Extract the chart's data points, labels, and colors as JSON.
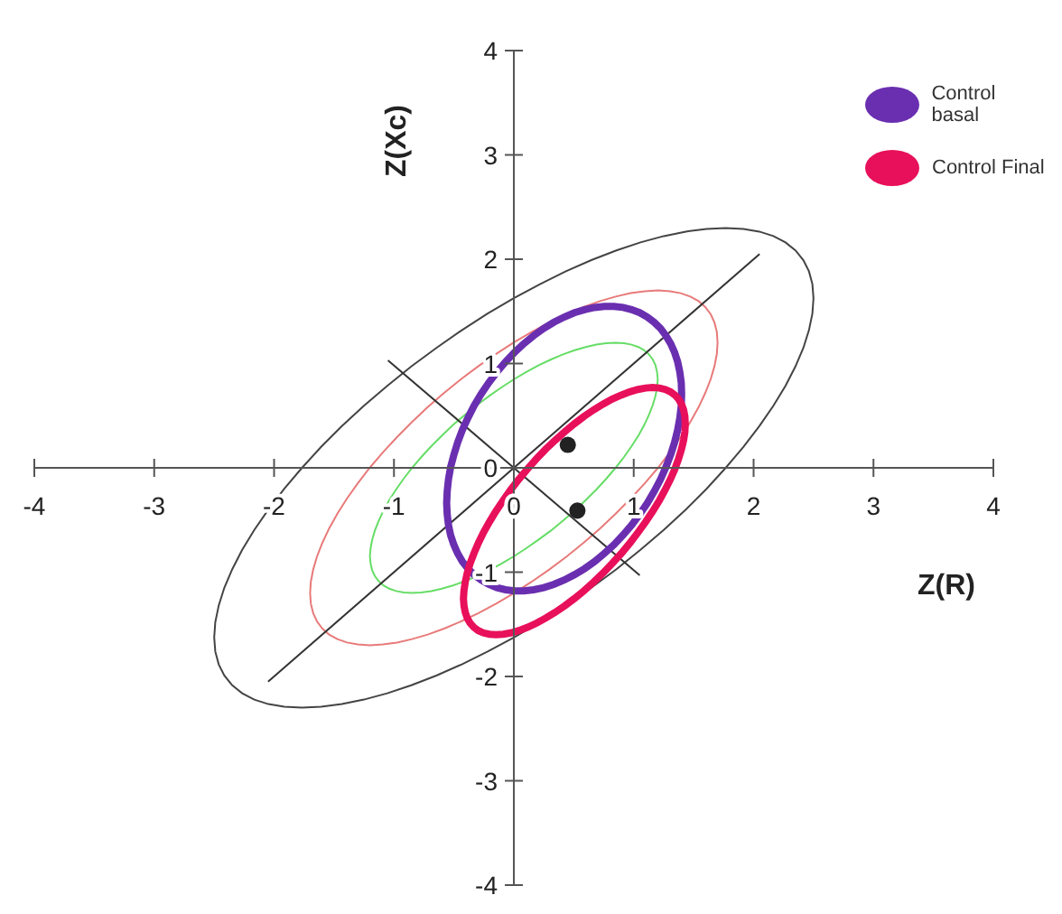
{
  "chart_data": {
    "type": "line",
    "xlabel": "Z(R)",
    "ylabel": "Z(Xc)",
    "annotations": [
      "Control basal",
      "Control Final"
    ],
    "xlim": [
      -4,
      4
    ],
    "ylim": [
      -4,
      4
    ],
    "xticks": [
      -4,
      -3,
      -2,
      -1,
      0,
      1,
      2,
      3,
      4
    ],
    "yticks": [
      -4,
      -3,
      -2,
      -1,
      0,
      1,
      2,
      3,
      4
    ],
    "grid": false,
    "marker": "none",
    "line_style": "solid",
    "series": [
      {
        "color": "#333333",
        "x": [
          -2.05,
          2.05
        ],
        "values": [
          -2.05,
          2.05
        ]
      },
      {
        "color": "#333333",
        "x": [
          -1.05,
          1.05
        ],
        "values": [
          1.03,
          -1.03
        ]
      },
      {
        "type": "scatter",
        "marker": "circle",
        "color": "#222222",
        "x": [
          0.45,
          0.53
        ],
        "values": [
          0.22,
          -0.41
        ]
      }
    ]
  }
}
